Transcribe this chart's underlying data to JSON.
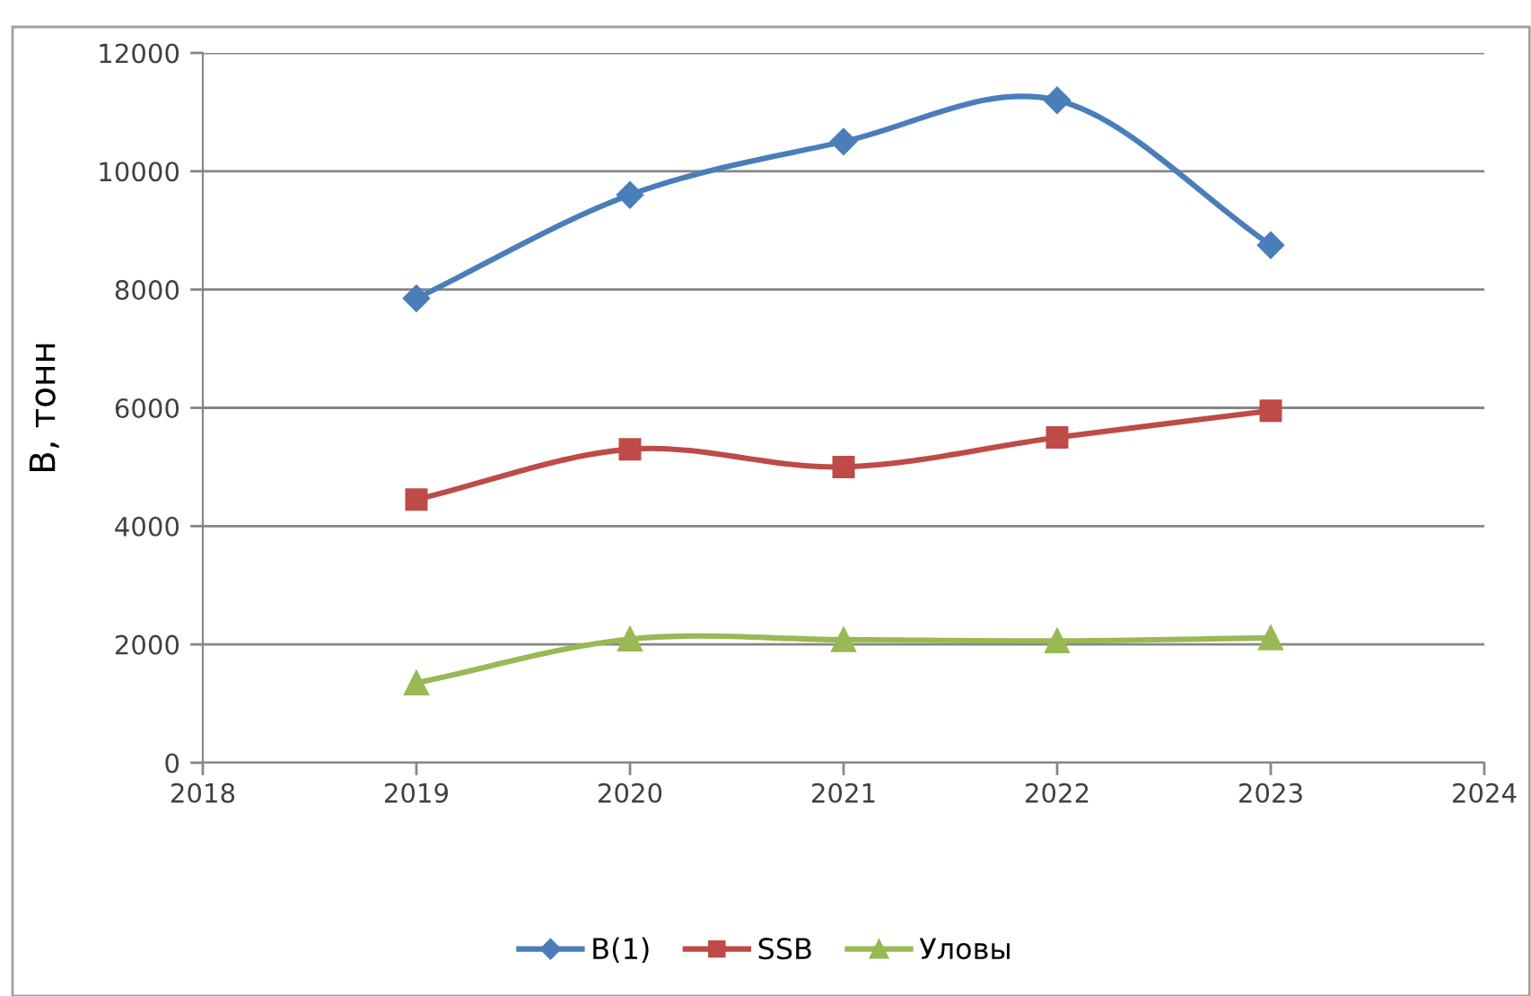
{
  "chart_data": {
    "type": "line",
    "ylabel": "B, тонн",
    "x": [
      2019,
      2020,
      2021,
      2022,
      2023
    ],
    "series": [
      {
        "name": "B(1)",
        "color": "#4a7ebb",
        "marker": "diamond",
        "values": [
          7850,
          9600,
          10500,
          11200,
          8750
        ]
      },
      {
        "name": "SSB",
        "color": "#be4b48",
        "marker": "square",
        "values": [
          4450,
          5300,
          5000,
          5500,
          5950
        ]
      },
      {
        "name": "Уловы",
        "color": "#98b954",
        "marker": "triangle",
        "values": [
          1350,
          2090,
          2080,
          2060,
          2110
        ]
      }
    ],
    "xlim": [
      2018,
      2024
    ],
    "xticks": [
      2018,
      2019,
      2020,
      2021,
      2022,
      2023,
      2024
    ],
    "ylim": [
      0,
      12000
    ],
    "yticks": [
      0,
      2000,
      4000,
      6000,
      8000,
      10000,
      12000
    ],
    "grid": "y",
    "legend": "bottom",
    "line_style": "solid"
  }
}
